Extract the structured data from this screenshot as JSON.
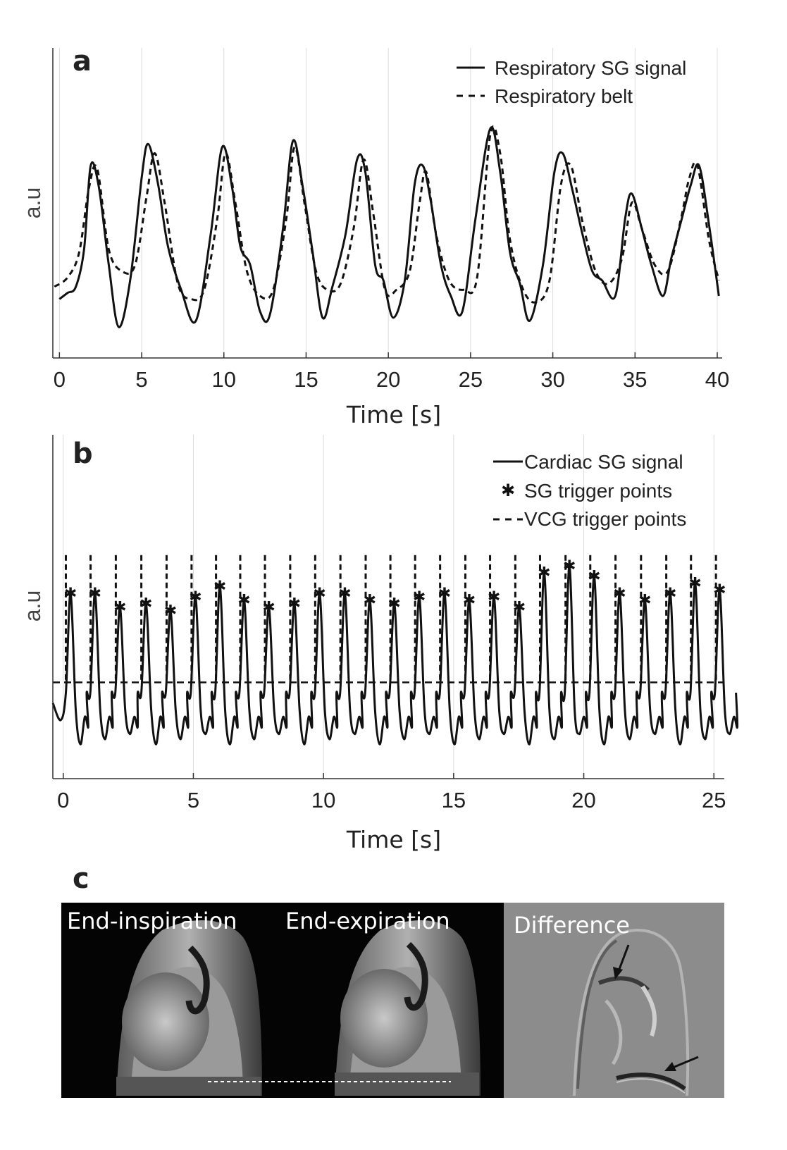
{
  "chart_data": [
    {
      "panel": "a",
      "type": "line",
      "xlabel": "Time [s]",
      "ylabel": "a.u",
      "xlim": [
        -0.4,
        40.3
      ],
      "ylim": [
        0,
        1
      ],
      "xticks": [
        0,
        5,
        10,
        15,
        20,
        25,
        30,
        35,
        40
      ],
      "grid": "vertical",
      "legend_position": "top-right",
      "series": [
        {
          "name": "Respiratory SG signal",
          "style": "solid",
          "x": [
            0,
            0.5,
            1,
            1.5,
            1.9,
            2.4,
            3,
            3.6,
            4.3,
            5,
            5.4,
            6,
            6.6,
            7.4,
            8.3,
            9.2,
            9.9,
            10.5,
            11,
            11.6,
            12.2,
            12.8,
            13.6,
            14.2,
            14.8,
            15.4,
            16,
            16.6,
            17.4,
            18.1,
            18.6,
            19.2,
            19.7,
            20.3,
            21,
            21.6,
            22.1,
            22.6,
            23.2,
            23.8,
            24.5,
            25.3,
            26.2,
            26.8,
            27.4,
            28,
            28.6,
            29.4,
            30.1,
            30.6,
            31.2,
            31.8,
            32.4,
            33,
            33.8,
            34.4,
            34.8,
            35.4,
            36,
            36.7,
            37.2,
            37.8,
            38.4,
            38.9,
            39.5,
            40.1
          ],
          "y": [
            0.19,
            0.21,
            0.23,
            0.35,
            0.62,
            0.55,
            0.3,
            0.1,
            0.25,
            0.58,
            0.69,
            0.56,
            0.36,
            0.22,
            0.12,
            0.4,
            0.68,
            0.55,
            0.36,
            0.3,
            0.15,
            0.14,
            0.42,
            0.7,
            0.55,
            0.34,
            0.13,
            0.23,
            0.4,
            0.64,
            0.6,
            0.3,
            0.25,
            0.13,
            0.25,
            0.56,
            0.62,
            0.5,
            0.3,
            0.2,
            0.15,
            0.45,
            0.74,
            0.6,
            0.34,
            0.24,
            0.12,
            0.3,
            0.6,
            0.66,
            0.54,
            0.4,
            0.28,
            0.25,
            0.2,
            0.45,
            0.53,
            0.42,
            0.3,
            0.2,
            0.32,
            0.44,
            0.56,
            0.62,
            0.43,
            0.2
          ]
        },
        {
          "name": "Respiratory belt",
          "style": "dashed",
          "x": [
            -0.3,
            0.5,
            1.2,
            1.8,
            2.3,
            3,
            3.8,
            4.6,
            5.3,
            5.8,
            6.4,
            7.2,
            8,
            8.8,
            9.6,
            10.1,
            10.7,
            11.4,
            12.2,
            13,
            13.8,
            14.3,
            14.9,
            15.6,
            16.3,
            17.1,
            17.9,
            18.5,
            19.1,
            19.8,
            20.5,
            21.3,
            21.9,
            22.3,
            22.9,
            23.7,
            24.6,
            25.4,
            26.2,
            26.8,
            27.4,
            28.2,
            29,
            29.8,
            30.5,
            31.1,
            31.8,
            32.6,
            33.4,
            34.2,
            34.8,
            35.4,
            36.2,
            37,
            37.8,
            38.3,
            38.8,
            39.5,
            40.1
          ],
          "y": [
            0.23,
            0.26,
            0.34,
            0.55,
            0.61,
            0.35,
            0.28,
            0.3,
            0.52,
            0.66,
            0.5,
            0.24,
            0.19,
            0.22,
            0.45,
            0.66,
            0.5,
            0.28,
            0.2,
            0.22,
            0.45,
            0.68,
            0.5,
            0.28,
            0.22,
            0.24,
            0.42,
            0.64,
            0.46,
            0.22,
            0.22,
            0.28,
            0.5,
            0.6,
            0.4,
            0.25,
            0.22,
            0.26,
            0.72,
            0.66,
            0.38,
            0.22,
            0.18,
            0.25,
            0.56,
            0.62,
            0.44,
            0.28,
            0.24,
            0.32,
            0.5,
            0.42,
            0.3,
            0.28,
            0.45,
            0.58,
            0.62,
            0.38,
            0.25
          ]
        }
      ]
    },
    {
      "panel": "b",
      "type": "line",
      "xlabel": "Time [s]",
      "ylabel": "a.u",
      "xlim": [
        -0.4,
        25.4
      ],
      "ylim": [
        0,
        1
      ],
      "xticks": [
        0,
        5,
        10,
        15,
        20,
        25
      ],
      "grid": "vertical",
      "legend_position": "top-right",
      "threshold": 0.28,
      "series": [
        {
          "name": "Cardiac SG signal",
          "style": "solid"
        },
        {
          "name": "SG trigger points",
          "style": "marker",
          "x": [
            0.28,
            1.22,
            2.18,
            3.18,
            4.12,
            5.08,
            6.02,
            6.95,
            7.9,
            8.88,
            9.85,
            10.82,
            11.78,
            12.72,
            13.68,
            14.65,
            15.6,
            16.55,
            17.52,
            18.48,
            19.45,
            20.4,
            21.38,
            22.35,
            23.32,
            24.28,
            25.22
          ],
          "y": [
            0.54,
            0.54,
            0.5,
            0.51,
            0.49,
            0.53,
            0.56,
            0.52,
            0.5,
            0.51,
            0.54,
            0.54,
            0.52,
            0.51,
            0.53,
            0.54,
            0.52,
            0.53,
            0.5,
            0.6,
            0.62,
            0.59,
            0.54,
            0.52,
            0.54,
            0.57,
            0.55
          ]
        },
        {
          "name": "VCG trigger points",
          "style": "dashed",
          "x": [
            0.1,
            1.05,
            2.02,
            3.0,
            3.97,
            4.93,
            5.87,
            6.8,
            7.75,
            8.72,
            9.68,
            10.65,
            11.62,
            12.57,
            13.52,
            14.48,
            15.45,
            16.4,
            17.37,
            18.32,
            19.3,
            20.25,
            21.22,
            22.2,
            23.17,
            24.12,
            25.08
          ]
        }
      ]
    }
  ],
  "panel_c": {
    "letter": "c",
    "labels": [
      "End-inspiration",
      "End-expiration",
      "Difference"
    ]
  }
}
